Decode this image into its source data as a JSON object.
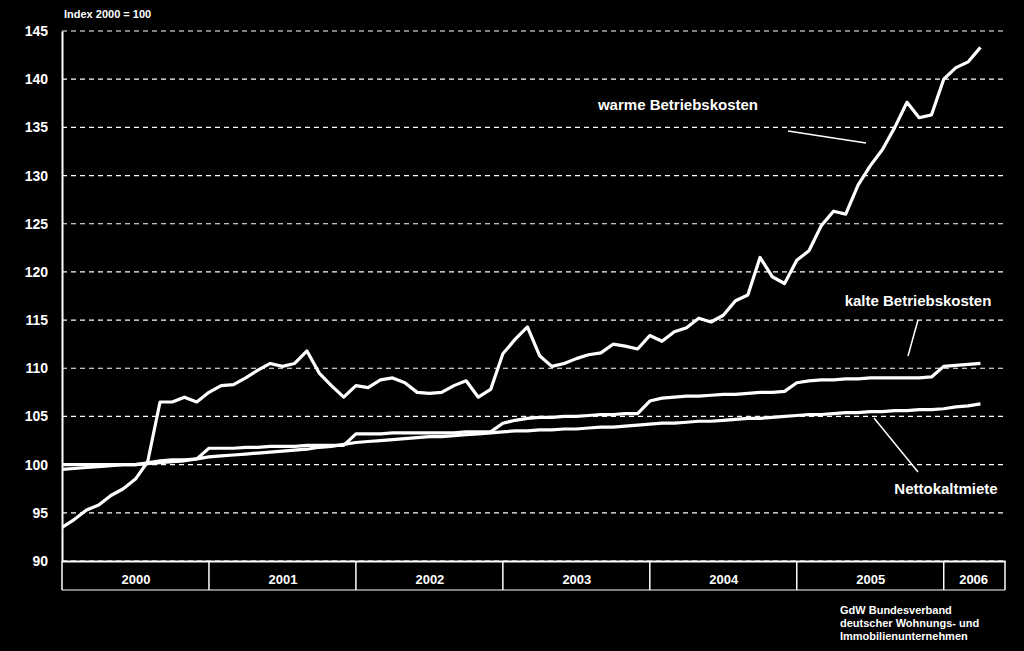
{
  "chart_data": {
    "type": "line",
    "ylabel": "Index 2000 = 100",
    "x": [
      2000,
      2000.083,
      2000.167,
      2000.25,
      2000.333,
      2000.417,
      2000.5,
      2000.583,
      2000.667,
      2000.75,
      2000.833,
      2000.917,
      2001,
      2001.083,
      2001.167,
      2001.25,
      2001.333,
      2001.417,
      2001.5,
      2001.583,
      2001.667,
      2001.75,
      2001.833,
      2001.917,
      2002,
      2002.083,
      2002.167,
      2002.25,
      2002.333,
      2002.417,
      2002.5,
      2002.583,
      2002.667,
      2002.75,
      2002.833,
      2002.917,
      2003,
      2003.083,
      2003.167,
      2003.25,
      2003.333,
      2003.417,
      2003.5,
      2003.583,
      2003.667,
      2003.75,
      2003.833,
      2003.917,
      2004,
      2004.083,
      2004.167,
      2004.25,
      2004.333,
      2004.417,
      2004.5,
      2004.583,
      2004.667,
      2004.75,
      2004.833,
      2004.917,
      2005,
      2005.083,
      2005.167,
      2005.25,
      2005.333,
      2005.417,
      2005.5,
      2005.583,
      2005.667,
      2005.75,
      2005.833,
      2005.917,
      2006,
      2006.083,
      2006.167,
      2006.25
    ],
    "series": [
      {
        "name": "warme Betriebskosten",
        "color": "#ffffff",
        "values": [
          93.5,
          94.3,
          95.3,
          95.8,
          96.8,
          97.5,
          98.5,
          100.3,
          106.5,
          106.5,
          107.0,
          106.5,
          107.5,
          108.2,
          108.3,
          109.0,
          109.8,
          110.5,
          110.2,
          110.5,
          111.8,
          109.5,
          108.2,
          107.0,
          108.2,
          108.0,
          108.8,
          109.0,
          108.5,
          107.5,
          107.4,
          107.5,
          108.2,
          108.7,
          107.0,
          107.8,
          111.5,
          113.0,
          114.3,
          111.3,
          110.2,
          110.5,
          111.0,
          111.4,
          111.6,
          112.5,
          112.3,
          112.0,
          113.4,
          112.8,
          113.8,
          114.2,
          115.2,
          114.8,
          115.5,
          117.0,
          117.6,
          121.5,
          119.5,
          118.8,
          121.2,
          122.2,
          124.8,
          126.3,
          126.0,
          129.0,
          131.0,
          132.7,
          135.0,
          137.6,
          136.0,
          136.3,
          140.0,
          141.2,
          141.8,
          143.3
        ]
      },
      {
        "name": "kalte Betriebskosten",
        "color": "#ffffff",
        "values": [
          100.0,
          100.0,
          100.0,
          100.0,
          100.0,
          100.0,
          100.0,
          100.2,
          100.4,
          100.5,
          100.5,
          100.6,
          101.7,
          101.7,
          101.7,
          101.8,
          101.8,
          101.9,
          101.9,
          101.9,
          102.0,
          102.0,
          102.0,
          102.0,
          103.2,
          103.2,
          103.2,
          103.3,
          103.3,
          103.3,
          103.3,
          103.3,
          103.3,
          103.4,
          103.4,
          103.4,
          104.3,
          104.6,
          104.8,
          104.9,
          104.9,
          105.0,
          105.0,
          105.1,
          105.2,
          105.2,
          105.3,
          105.3,
          106.6,
          106.9,
          107.0,
          107.1,
          107.1,
          107.2,
          107.3,
          107.3,
          107.4,
          107.5,
          107.5,
          107.6,
          108.5,
          108.7,
          108.8,
          108.8,
          108.9,
          108.9,
          109.0,
          109.0,
          109.0,
          109.0,
          109.0,
          109.1,
          110.2,
          110.3,
          110.4,
          110.5
        ]
      },
      {
        "name": "Nettokaltmiete",
        "color": "#ffffff",
        "values": [
          99.5,
          99.6,
          99.7,
          99.8,
          99.9,
          100.0,
          100.0,
          100.1,
          100.2,
          100.3,
          100.4,
          100.6,
          100.8,
          100.9,
          101.0,
          101.1,
          101.2,
          101.3,
          101.4,
          101.5,
          101.6,
          101.8,
          101.9,
          102.1,
          102.3,
          102.4,
          102.5,
          102.6,
          102.7,
          102.8,
          102.9,
          102.9,
          103.0,
          103.1,
          103.2,
          103.3,
          103.4,
          103.5,
          103.5,
          103.6,
          103.6,
          103.7,
          103.7,
          103.8,
          103.9,
          103.9,
          104.0,
          104.1,
          104.2,
          104.3,
          104.3,
          104.4,
          104.5,
          104.5,
          104.6,
          104.7,
          104.8,
          104.8,
          104.9,
          105.0,
          105.1,
          105.2,
          105.2,
          105.3,
          105.4,
          105.4,
          105.5,
          105.5,
          105.6,
          105.6,
          105.7,
          105.7,
          105.8,
          106.0,
          106.1,
          106.3
        ]
      }
    ],
    "xlim": [
      2000,
      2006.417
    ],
    "xticks": [
      {
        "value": 2000.5,
        "label": "2000"
      },
      {
        "value": 2001.5,
        "label": "2001"
      },
      {
        "value": 2002.5,
        "label": "2002"
      },
      {
        "value": 2003.5,
        "label": "2003"
      },
      {
        "value": 2004.5,
        "label": "2004"
      },
      {
        "value": 2005.5,
        "label": "2005"
      },
      {
        "value": 2006.2,
        "label": "2006"
      }
    ],
    "ylim": [
      90,
      145
    ],
    "yticks": [
      90,
      95,
      100,
      105,
      110,
      115,
      120,
      125,
      130,
      135,
      140,
      145
    ],
    "grid": true,
    "annotations": [
      "GdW Bundesverband",
      "deutscher Wohnungs- und",
      "Immobilienunternehmen"
    ]
  }
}
